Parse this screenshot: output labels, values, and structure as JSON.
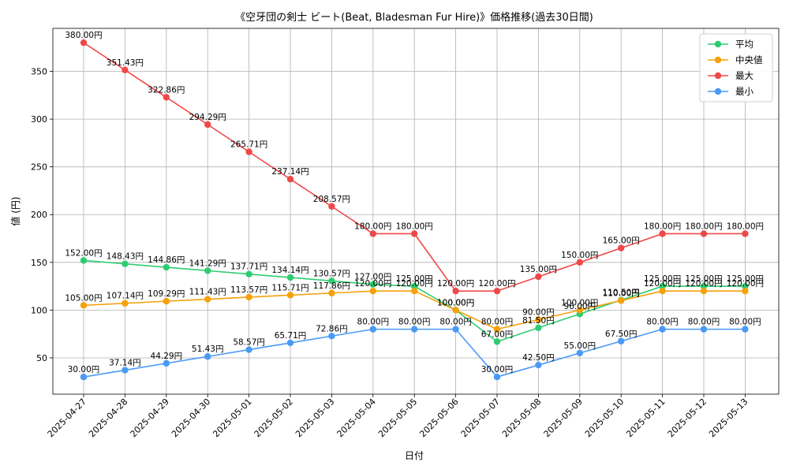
{
  "chart_data": {
    "type": "line",
    "title": "《空牙団の剣士 ビート(Beat, Bladesman Fur Hire)》価格推移(過去30日間)",
    "xlabel": "日付",
    "ylabel": "値 (円)",
    "ylim": [
      12,
      395
    ],
    "yticks": [
      50,
      100,
      150,
      200,
      250,
      300,
      350
    ],
    "grid": true,
    "legend_position": "top-right",
    "label_suffix": "円",
    "categories": [
      "2025-04-27",
      "2025-04-28",
      "2025-04-29",
      "2025-04-30",
      "2025-05-01",
      "2025-05-02",
      "2025-05-03",
      "2025-05-04",
      "2025-05-05",
      "2025-05-06",
      "2025-05-07",
      "2025-05-08",
      "2025-05-09",
      "2025-05-10",
      "2025-05-11",
      "2025-05-12",
      "2025-05-13"
    ],
    "series": [
      {
        "name": "平均",
        "color": "#2ecc71",
        "values": [
          152.0,
          148.43,
          144.86,
          141.29,
          137.71,
          134.14,
          130.57,
          127.0,
          125.0,
          100.0,
          67.0,
          81.5,
          96.0,
          110.5,
          125.0,
          125.0,
          125.0
        ]
      },
      {
        "name": "中央値",
        "color": "#f5a10a",
        "values": [
          105.0,
          107.14,
          109.29,
          111.43,
          113.57,
          115.71,
          117.86,
          120.0,
          120.0,
          100.0,
          80.0,
          90.0,
          100.0,
          110.0,
          120.0,
          120.0,
          120.0
        ]
      },
      {
        "name": "最大",
        "color": "#f04848",
        "values": [
          380.0,
          351.43,
          322.86,
          294.29,
          265.71,
          237.14,
          208.57,
          180.0,
          180.0,
          120.0,
          120.0,
          135.0,
          150.0,
          165.0,
          180.0,
          180.0,
          180.0
        ]
      },
      {
        "name": "最小",
        "color": "#4a9af5",
        "values": [
          30.0,
          37.14,
          44.29,
          51.43,
          58.57,
          65.71,
          72.86,
          80.0,
          80.0,
          80.0,
          30.0,
          42.5,
          55.0,
          67.5,
          80.0,
          80.0,
          80.0
        ]
      }
    ]
  }
}
